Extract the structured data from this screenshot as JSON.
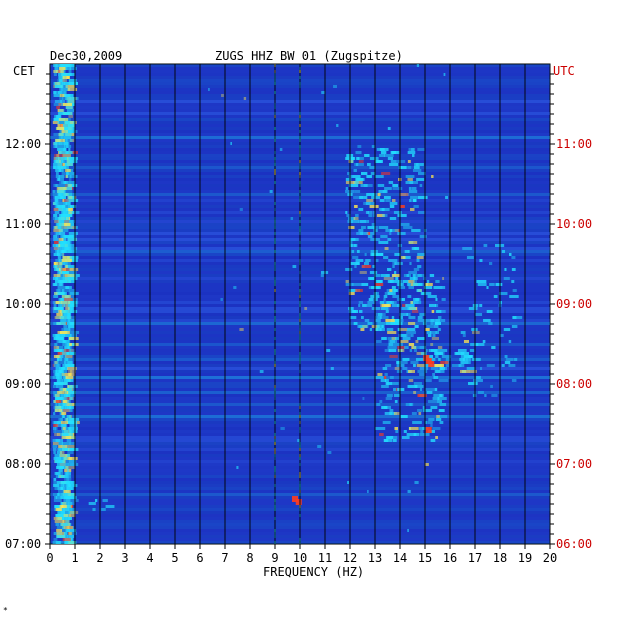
{
  "chart_data": {
    "type": "heatmap",
    "date_label": "Dec30,2009",
    "title": "ZUGS HHZ BW 01 (Zugspitze)",
    "left_timezone": "CET",
    "right_timezone": "UTC",
    "xlabel": "FREQUENCY (HZ)",
    "xlim": [
      0,
      20
    ],
    "x_ticks": [
      "0",
      "1",
      "2",
      "3",
      "4",
      "5",
      "6",
      "7",
      "8",
      "9",
      "10",
      "11",
      "12",
      "13",
      "14",
      "15",
      "16",
      "17",
      "18",
      "19",
      "20"
    ],
    "left_time_ticks": [
      "12:00",
      "11:00",
      "10:00",
      "09:00",
      "08:00",
      "07:00"
    ],
    "right_time_ticks": [
      "11:00",
      "10:00",
      "09:00",
      "08:00",
      "07:00",
      "06:00"
    ],
    "time_range_cet": [
      "07:00",
      "13:00"
    ],
    "colors": {
      "background": "#1a2fbf",
      "low": "#0b1fb5",
      "mid": "#3d7dff",
      "high": "#22e0ff",
      "peak": "#ffe650",
      "extreme": "#ff3c1e",
      "gridline": "#000000",
      "right_axis": "#cc0000"
    },
    "grid": true,
    "corner_mark": "*"
  }
}
